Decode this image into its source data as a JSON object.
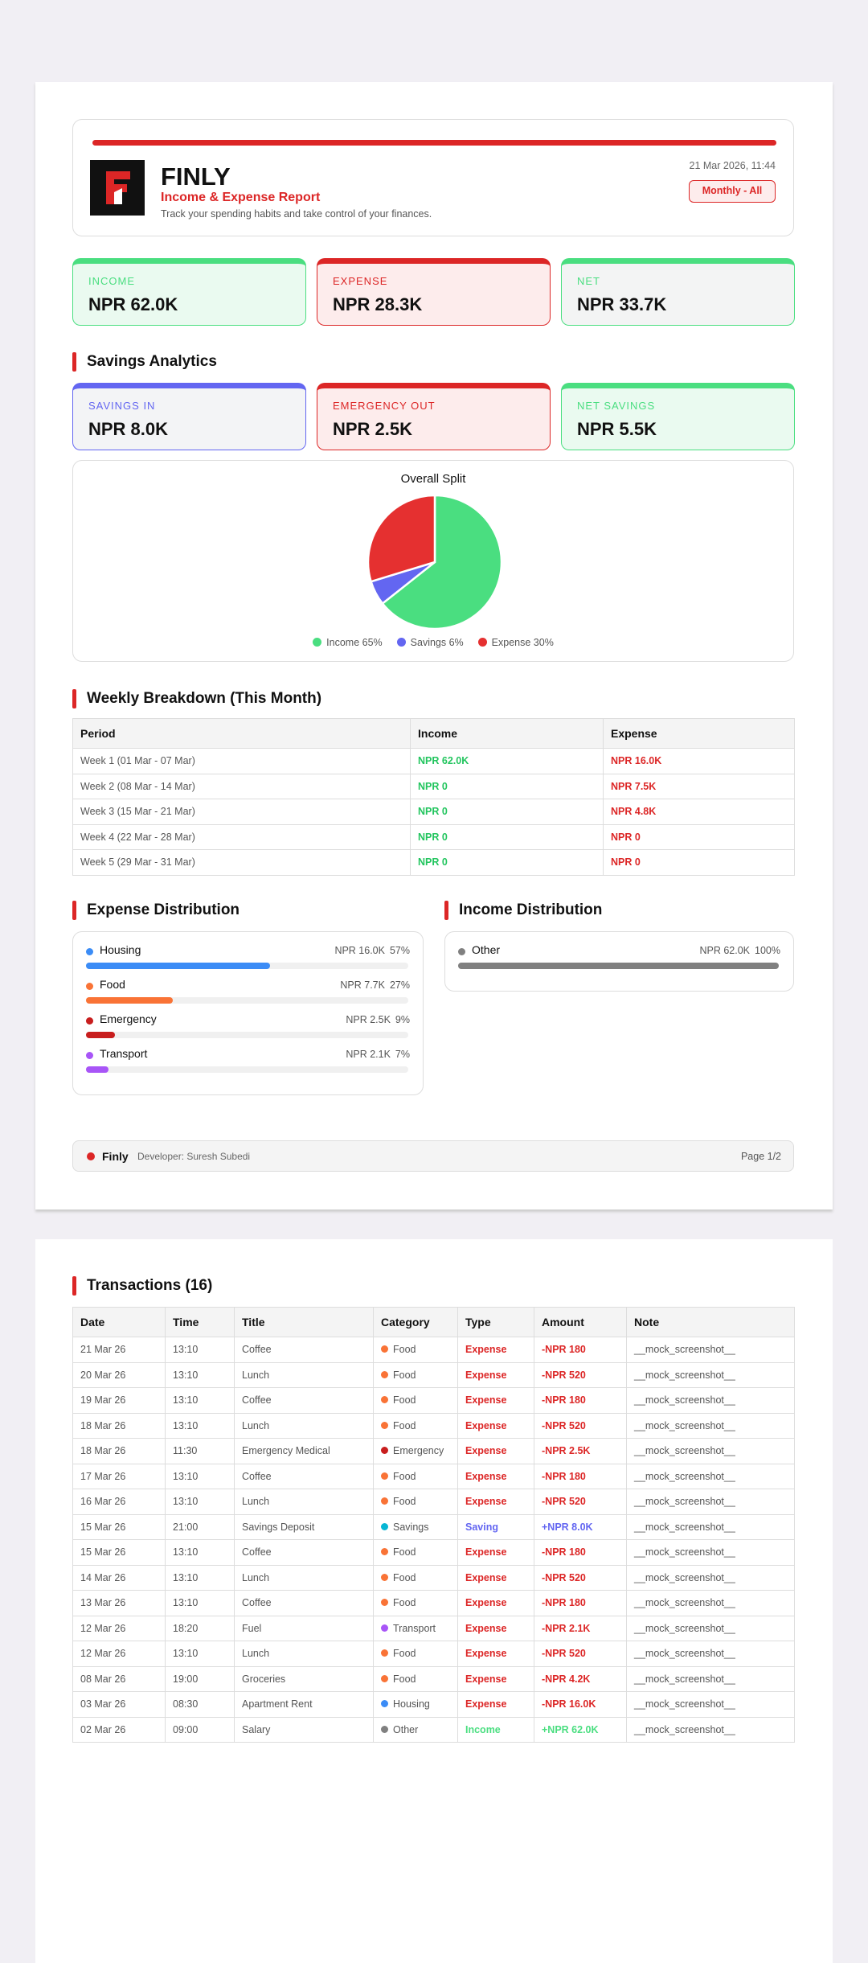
{
  "header": {
    "brand": "FINLY",
    "title": "Income & Expense Report",
    "subtitle": "Track your spending habits and take control of your finances.",
    "date": "21 Mar 2026, 11:44",
    "filter": "Monthly - All"
  },
  "summary": [
    {
      "label": "INCOME",
      "value": "NPR 62.0K",
      "color": "#4ade80",
      "bg": "#eafaf0"
    },
    {
      "label": "EXPENSE",
      "value": "NPR 28.3K",
      "color": "#dc2626",
      "bg": "#fdecec"
    },
    {
      "label": "NET",
      "value": "NPR 33.7K",
      "color": "#4ade80",
      "bg": "#f3f4f4"
    }
  ],
  "savings": {
    "heading": "Savings Analytics",
    "cards": [
      {
        "label": "SAVINGS IN",
        "value": "NPR 8.0K",
        "color": "#6366f1",
        "bg": "#f3f4f6"
      },
      {
        "label": "EMERGENCY OUT",
        "value": "NPR 2.5K",
        "color": "#dc2626",
        "bg": "#fdecec"
      },
      {
        "label": "NET SAVINGS",
        "value": "NPR 5.5K",
        "color": "#4ade80",
        "bg": "#eafaf0"
      }
    ]
  },
  "overall_split": {
    "title": "Overall Split",
    "segments": [
      {
        "label": "Income 65%",
        "value": 65,
        "color": "#4ade80"
      },
      {
        "label": "Savings 6%",
        "value": 6,
        "color": "#6366f1"
      },
      {
        "label": "Expense 30%",
        "value": 30,
        "color": "#e53030"
      }
    ]
  },
  "weekly": {
    "heading": "Weekly Breakdown (This Month)",
    "columns": [
      "Period",
      "Income",
      "Expense"
    ],
    "rows": [
      [
        "Week 1  (01 Mar - 07 Mar)",
        "NPR 62.0K",
        "NPR 16.0K"
      ],
      [
        "Week 2  (08 Mar - 14 Mar)",
        "NPR 0",
        "NPR 7.5K"
      ],
      [
        "Week 3  (15 Mar - 21 Mar)",
        "NPR 0",
        "NPR 4.8K"
      ],
      [
        "Week 4  (22 Mar - 28 Mar)",
        "NPR 0",
        "NPR 0"
      ],
      [
        "Week 5  (29 Mar - 31 Mar)",
        "NPR 0",
        "NPR 0"
      ]
    ]
  },
  "expense_distribution": {
    "heading": "Expense Distribution",
    "items": [
      {
        "name": "Housing",
        "amount": "NPR 16.0K",
        "percent_label": "57%",
        "percent": 57,
        "color": "#3b8cf6"
      },
      {
        "name": "Food",
        "amount": "NPR 7.7K",
        "percent_label": "27%",
        "percent": 27,
        "color": "#f97336"
      },
      {
        "name": "Emergency",
        "amount": "NPR 2.5K",
        "percent_label": "9%",
        "percent": 9,
        "color": "#c81e1e"
      },
      {
        "name": "Transport",
        "amount": "NPR 2.1K",
        "percent_label": "7%",
        "percent": 7,
        "color": "#a855f7"
      }
    ]
  },
  "income_distribution": {
    "heading": "Income Distribution",
    "items": [
      {
        "name": "Other",
        "amount": "NPR 62.0K",
        "percent_label": "100%",
        "percent": 100,
        "color": "#808080"
      }
    ]
  },
  "footer": {
    "brand": "Finly",
    "developer": "Developer: Suresh Subedi",
    "page": "Page 1/2"
  },
  "transactions": {
    "heading": "Transactions (16)",
    "columns": [
      "Date",
      "Time",
      "Title",
      "Category",
      "Type",
      "Amount",
      "Note"
    ],
    "category_colors": {
      "Food": "#f97336",
      "Emergency": "#c81e1e",
      "Savings": "#06b6d4",
      "Transport": "#a855f7",
      "Housing": "#3b8cf6",
      "Other": "#808080"
    },
    "type_colors": {
      "Expense": "#dc2626",
      "Saving": "#6366f1",
      "Income": "#4ade80"
    },
    "rows": [
      [
        "21 Mar 26",
        "13:10",
        "Coffee",
        "Food",
        "Expense",
        "-NPR 180",
        "__mock_screenshot__"
      ],
      [
        "20 Mar 26",
        "13:10",
        "Lunch",
        "Food",
        "Expense",
        "-NPR 520",
        "__mock_screenshot__"
      ],
      [
        "19 Mar 26",
        "13:10",
        "Coffee",
        "Food",
        "Expense",
        "-NPR 180",
        "__mock_screenshot__"
      ],
      [
        "18 Mar 26",
        "13:10",
        "Lunch",
        "Food",
        "Expense",
        "-NPR 520",
        "__mock_screenshot__"
      ],
      [
        "18 Mar 26",
        "11:30",
        "Emergency Medical",
        "Emergency",
        "Expense",
        "-NPR 2.5K",
        "__mock_screenshot__"
      ],
      [
        "17 Mar 26",
        "13:10",
        "Coffee",
        "Food",
        "Expense",
        "-NPR 180",
        "__mock_screenshot__"
      ],
      [
        "16 Mar 26",
        "13:10",
        "Lunch",
        "Food",
        "Expense",
        "-NPR 520",
        "__mock_screenshot__"
      ],
      [
        "15 Mar 26",
        "21:00",
        "Savings Deposit",
        "Savings",
        "Saving",
        "+NPR 8.0K",
        "__mock_screenshot__"
      ],
      [
        "15 Mar 26",
        "13:10",
        "Coffee",
        "Food",
        "Expense",
        "-NPR 180",
        "__mock_screenshot__"
      ],
      [
        "14 Mar 26",
        "13:10",
        "Lunch",
        "Food",
        "Expense",
        "-NPR 520",
        "__mock_screenshot__"
      ],
      [
        "13 Mar 26",
        "13:10",
        "Coffee",
        "Food",
        "Expense",
        "-NPR 180",
        "__mock_screenshot__"
      ],
      [
        "12 Mar 26",
        "18:20",
        "Fuel",
        "Transport",
        "Expense",
        "-NPR 2.1K",
        "__mock_screenshot__"
      ],
      [
        "12 Mar 26",
        "13:10",
        "Lunch",
        "Food",
        "Expense",
        "-NPR 520",
        "__mock_screenshot__"
      ],
      [
        "08 Mar 26",
        "19:00",
        "Groceries",
        "Food",
        "Expense",
        "-NPR 4.2K",
        "__mock_screenshot__"
      ],
      [
        "03 Mar 26",
        "08:30",
        "Apartment Rent",
        "Housing",
        "Expense",
        "-NPR 16.0K",
        "__mock_screenshot__"
      ],
      [
        "02 Mar 26",
        "09:00",
        "Salary",
        "Other",
        "Income",
        "+NPR 62.0K",
        "__mock_screenshot__"
      ]
    ]
  }
}
